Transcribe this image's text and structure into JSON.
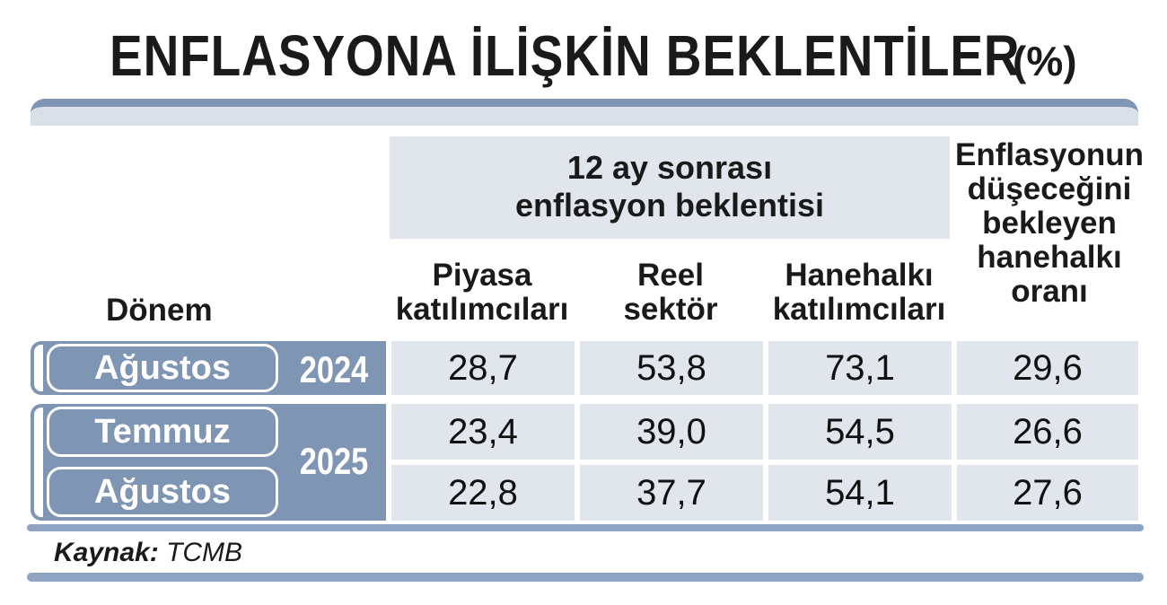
{
  "title": "ENFLASYONA İLİŞKİN BEKLENTİLER",
  "unit": "(%)",
  "header": {
    "group_line1": "12 ay sonrası",
    "group_line2": "enflasyon beklentisi",
    "donem": "Dönem",
    "col1_line1": "Piyasa",
    "col1_line2": "katılımcıları",
    "col2_line1": "Reel",
    "col2_line2": "sektör",
    "col3_line1": "Hanehalkı",
    "col3_line2": "katılımcıları",
    "col4_line1": "Enflasyonun",
    "col4_line2": "düşeceğini",
    "col4_line3": "bekleyen",
    "col4_line4": "hanehalkı",
    "col4_line5": "oranı"
  },
  "years": [
    "2024",
    "2025"
  ],
  "months": [
    "Ağustos",
    "Temmuz",
    "Ağustos"
  ],
  "source_label": "Kaynak:",
  "source_value": "TCMB",
  "chart_data": {
    "type": "table",
    "title": "ENFLASYONA İLİŞKİN BEKLENTİLER",
    "unit": "(%)",
    "columns": [
      "Dönem",
      "Piyasa katılımcıları",
      "Reel sektör",
      "Hanehalkı katılımcıları",
      "Enflasyonun düşeceğini bekleyen hanehalkı oranı"
    ],
    "rows": [
      {
        "period": "Ağustos 2024",
        "values": [
          "28,7",
          "53,8",
          "73,1",
          "29,6"
        ]
      },
      {
        "period": "Temmuz 2025",
        "values": [
          "23,4",
          "39,0",
          "54,5",
          "26,6"
        ]
      },
      {
        "period": "Ağustos 2025",
        "values": [
          "22,8",
          "37,7",
          "54,1",
          "27,6"
        ]
      }
    ],
    "cells": [
      [
        "28,7",
        "53,8",
        "73,1",
        "29,6"
      ],
      [
        "23,4",
        "39,0",
        "54,5",
        "26,6"
      ],
      [
        "22,8",
        "37,7",
        "54,1",
        "27,6"
      ]
    ]
  },
  "colors": {
    "accent": "#7f95b4",
    "cell_bg": "#e1e6ec",
    "bar": "#8ea4c2"
  }
}
